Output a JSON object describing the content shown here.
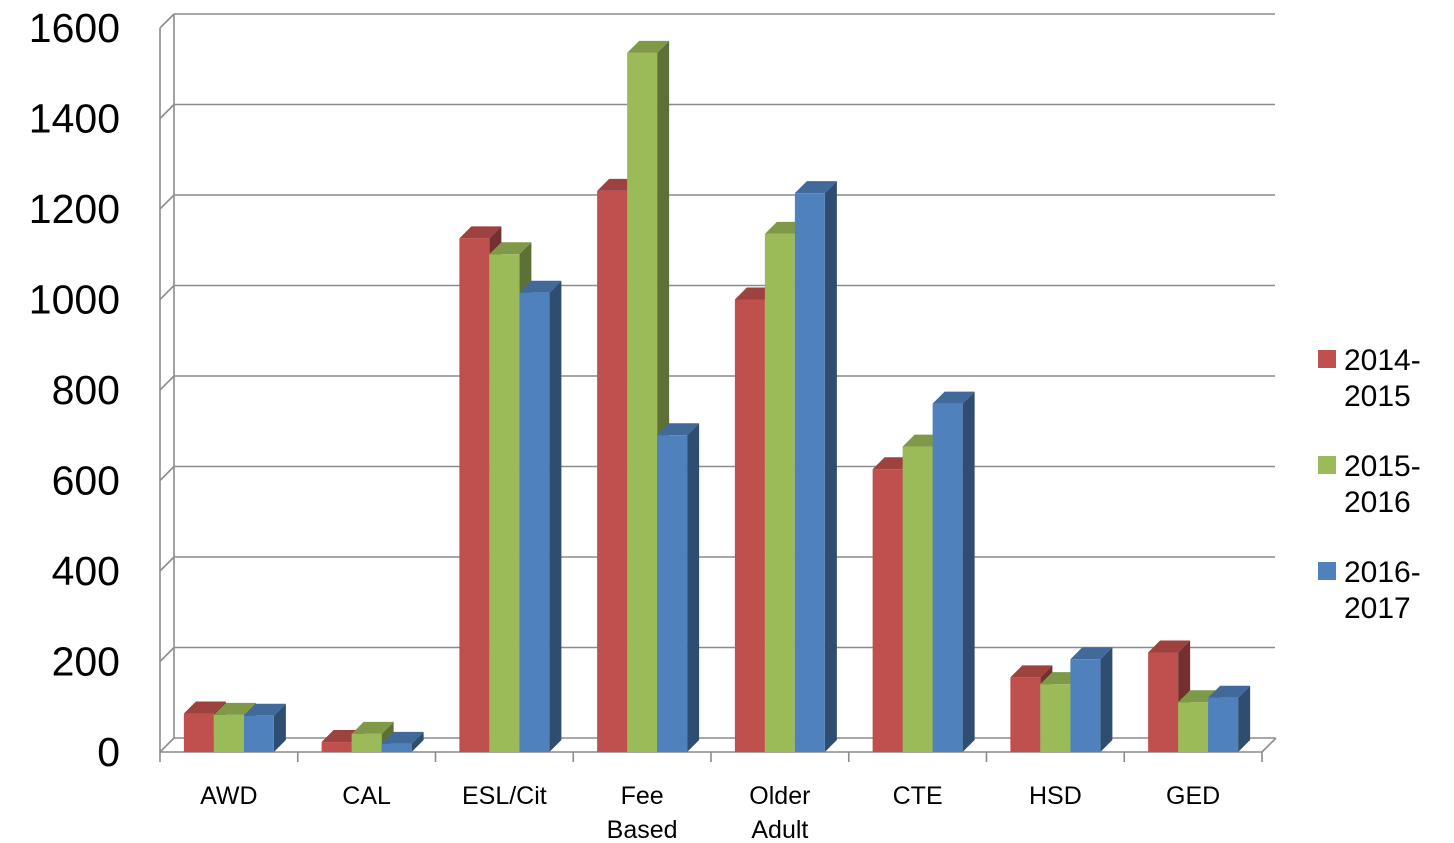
{
  "chart_data": {
    "type": "bar",
    "style": "3d-clustered-column",
    "title": "",
    "xlabel": "",
    "ylabel": "",
    "ylim": [
      0,
      1600
    ],
    "yticks": [
      0,
      200,
      400,
      600,
      800,
      1000,
      1200,
      1400,
      1600
    ],
    "grid": true,
    "legend_position": "right",
    "categories": [
      [
        "AWD"
      ],
      [
        "CAL"
      ],
      [
        "ESL/Cit"
      ],
      [
        "Fee",
        "Based"
      ],
      [
        "Older",
        "Adult"
      ],
      [
        "CTE"
      ],
      [
        "HSD"
      ],
      [
        "GED"
      ]
    ],
    "series": [
      {
        "name": [
          "2014-",
          "2015"
        ],
        "color": "#c0504d",
        "values": [
          85,
          22,
          1135,
          1240,
          1000,
          625,
          165,
          220
        ]
      },
      {
        "name": [
          "2015-",
          "2016"
        ],
        "color": "#9bbb59",
        "values": [
          82,
          40,
          1100,
          1545,
          1145,
          675,
          150,
          110
        ]
      },
      {
        "name": [
          "2016-",
          "2017"
        ],
        "color": "#4f81bd",
        "values": [
          80,
          18,
          1015,
          700,
          1235,
          770,
          205,
          120
        ]
      }
    ]
  }
}
